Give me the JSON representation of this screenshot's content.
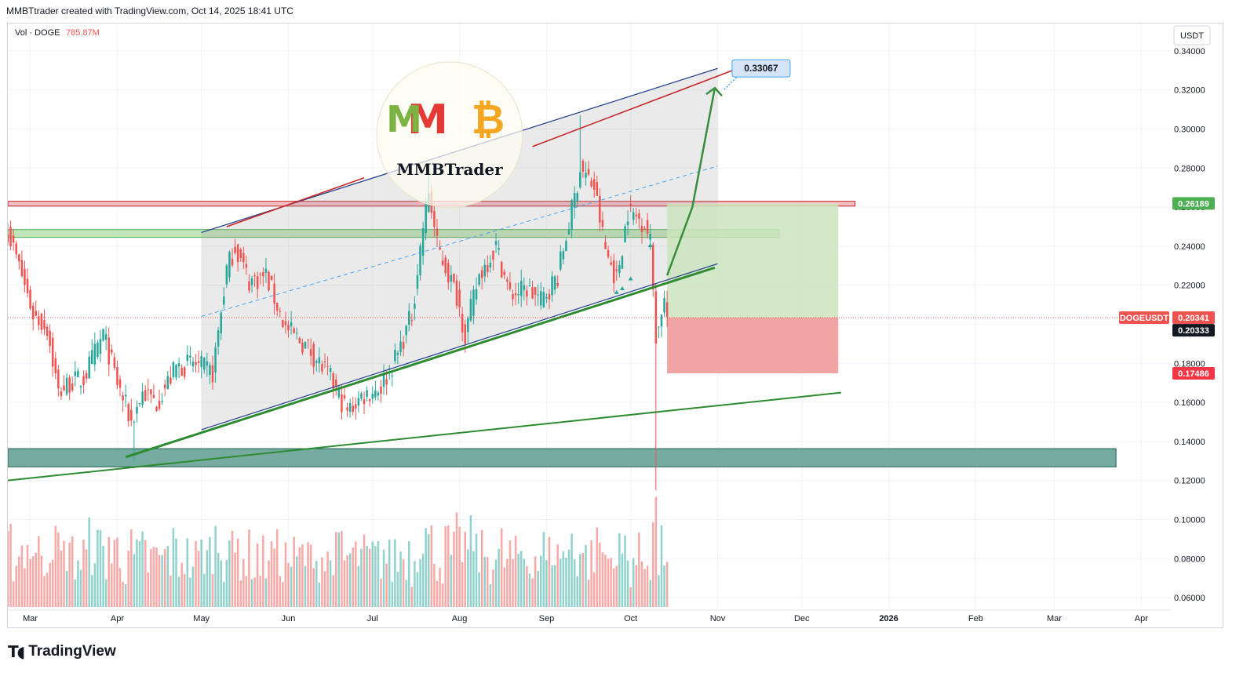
{
  "header": {
    "credit": "MMBTtrader created with TradingView.com, Oct 14, 2025 18:41 UTC"
  },
  "legend": {
    "vol_label": "Vol · DOGE",
    "vol_value": "785.87M"
  },
  "currency_label": "USDT",
  "footer": {
    "brand": "TradingView"
  },
  "watermark": {
    "text": "MMBTrader"
  },
  "colors": {
    "up": "#26a69a",
    "down": "#ef5350",
    "grid": "#f0f3fa",
    "target_box": "#cbe4bd",
    "stop_box": "#ef9a9a"
  },
  "chart_data": {
    "type": "candlestick",
    "symbol": "DOGEUSDT",
    "y_axis": {
      "ticks": [
        "0.06000",
        "0.08000",
        "0.10000",
        "0.12000",
        "0.14000",
        "0.16000",
        "0.18000",
        "0.20000",
        "0.22000",
        "0.24000",
        "0.26000",
        "0.28000",
        "0.30000",
        "0.32000",
        "0.34000"
      ],
      "range": [
        0.052,
        0.356
      ]
    },
    "x_axis": {
      "ticks": [
        {
          "label": "Mar",
          "date": "2025-03-01"
        },
        {
          "label": "Apr",
          "date": "2025-04-01"
        },
        {
          "label": "May",
          "date": "2025-05-01"
        },
        {
          "label": "Jun",
          "date": "2025-06-01"
        },
        {
          "label": "Jul",
          "date": "2025-07-01"
        },
        {
          "label": "Aug",
          "date": "2025-08-01"
        },
        {
          "label": "Sep",
          "date": "2025-09-01"
        },
        {
          "label": "Oct",
          "date": "2025-10-01"
        },
        {
          "label": "Nov",
          "date": "2025-11-01"
        },
        {
          "label": "Dec",
          "date": "2025-12-01"
        },
        {
          "label": "2026",
          "date": "2026-01-01"
        },
        {
          "label": "Feb",
          "date": "2026-02-01"
        },
        {
          "label": "Mar",
          "date": "2026-03-01"
        },
        {
          "label": "Apr",
          "date": "2026-04-01"
        }
      ],
      "range": [
        "2025-02-21",
        "2026-04-30"
      ]
    },
    "price_waypoints": [
      {
        "date": "2025-02-21",
        "close": 0.248
      },
      {
        "date": "2025-02-26",
        "close": 0.225
      },
      {
        "date": "2025-03-02",
        "close": 0.205
      },
      {
        "date": "2025-03-07",
        "close": 0.198
      },
      {
        "date": "2025-03-11",
        "close": 0.165
      },
      {
        "date": "2025-03-15",
        "close": 0.17
      },
      {
        "date": "2025-03-20",
        "close": 0.172
      },
      {
        "date": "2025-03-27",
        "close": 0.195
      },
      {
        "date": "2025-04-01",
        "close": 0.17
      },
      {
        "date": "2025-04-06",
        "close": 0.15
      },
      {
        "date": "2025-04-10",
        "close": 0.165
      },
      {
        "date": "2025-04-15",
        "close": 0.16
      },
      {
        "date": "2025-04-22",
        "close": 0.178
      },
      {
        "date": "2025-04-28",
        "close": 0.18
      },
      {
        "date": "2025-05-05",
        "close": 0.175
      },
      {
        "date": "2025-05-10",
        "close": 0.228
      },
      {
        "date": "2025-05-13",
        "close": 0.24
      },
      {
        "date": "2025-05-18",
        "close": 0.222
      },
      {
        "date": "2025-05-24",
        "close": 0.225
      },
      {
        "date": "2025-05-31",
        "close": 0.198
      },
      {
        "date": "2025-06-08",
        "close": 0.188
      },
      {
        "date": "2025-06-16",
        "close": 0.172
      },
      {
        "date": "2025-06-22",
        "close": 0.155
      },
      {
        "date": "2025-06-27",
        "close": 0.163
      },
      {
        "date": "2025-07-04",
        "close": 0.168
      },
      {
        "date": "2025-07-10",
        "close": 0.185
      },
      {
        "date": "2025-07-15",
        "close": 0.205
      },
      {
        "date": "2025-07-19",
        "close": 0.25
      },
      {
        "date": "2025-07-21",
        "close": 0.268
      },
      {
        "date": "2025-07-24",
        "close": 0.24
      },
      {
        "date": "2025-07-31",
        "close": 0.215
      },
      {
        "date": "2025-08-03",
        "close": 0.195
      },
      {
        "date": "2025-08-08",
        "close": 0.225
      },
      {
        "date": "2025-08-14",
        "close": 0.24
      },
      {
        "date": "2025-08-19",
        "close": 0.215
      },
      {
        "date": "2025-08-25",
        "close": 0.218
      },
      {
        "date": "2025-08-30",
        "close": 0.212
      },
      {
        "date": "2025-09-05",
        "close": 0.225
      },
      {
        "date": "2025-09-11",
        "close": 0.265
      },
      {
        "date": "2025-09-13",
        "close": 0.28
      },
      {
        "date": "2025-09-18",
        "close": 0.27
      },
      {
        "date": "2025-09-22",
        "close": 0.238
      },
      {
        "date": "2025-09-26",
        "close": 0.223
      },
      {
        "date": "2025-09-30",
        "close": 0.258
      },
      {
        "date": "2025-10-03",
        "close": 0.255
      },
      {
        "date": "2025-10-06",
        "close": 0.252
      },
      {
        "date": "2025-10-08",
        "close": 0.242
      },
      {
        "date": "2025-10-10",
        "close": 0.195
      },
      {
        "date": "2025-10-11",
        "close": 0.198
      },
      {
        "date": "2025-10-12",
        "close": 0.208
      },
      {
        "date": "2025-10-13",
        "close": 0.212
      },
      {
        "date": "2025-10-14",
        "close": 0.2034
      }
    ],
    "notable_highs_lows": [
      {
        "date": "2025-07-21",
        "high": 0.282
      },
      {
        "date": "2025-09-13",
        "high": 0.307
      },
      {
        "date": "2025-10-10",
        "low": 0.115
      },
      {
        "date": "2025-04-07",
        "low": 0.13
      }
    ],
    "price_tags": [
      {
        "label": "0.26189",
        "value": 0.26189,
        "color": "#4caf50"
      },
      {
        "label": "0.20341",
        "value": 0.20341,
        "color": "#ef5350",
        "symbol": "DOGEUSDT"
      },
      {
        "label": "0.20333",
        "value": 0.20333,
        "color": "#131722"
      },
      {
        "label": "0.17486",
        "value": 0.17486,
        "color": "#f23645"
      }
    ],
    "target_label": {
      "label": "0.33067",
      "value": 0.33067
    },
    "zones": [
      {
        "name": "resistance",
        "from": "2025-02-21",
        "to": "2025-12-20",
        "low": 0.2605,
        "high": 0.263,
        "color": "#f2b0b8"
      },
      {
        "name": "mid-support",
        "from": "2025-02-21",
        "to": "2025-11-23",
        "low": 0.2445,
        "high": 0.2485,
        "color": "#b5e0ae"
      },
      {
        "name": "demand",
        "from": "2025-02-21",
        "to": "2026-03-23",
        "low": 0.127,
        "high": 0.1363,
        "color": "#5d9c8f"
      }
    ],
    "channel": {
      "from": "2025-05-01",
      "to": "2025-11-01",
      "upper": [
        0.247,
        0.331
      ],
      "middle": [
        0.204,
        0.281
      ],
      "lower": [
        0.146,
        0.231
      ]
    },
    "trendlines": [
      {
        "from": "2025-02-21",
        "to": "2025-12-15",
        "y": [
          0.12,
          0.165
        ],
        "color": "#2e8b30"
      },
      {
        "from": "2025-04-04",
        "to": "2025-10-31",
        "y": [
          0.132,
          0.229
        ],
        "color": "#2e8b30"
      },
      {
        "from": "2025-05-10",
        "to": "2025-06-28",
        "y": [
          0.25,
          0.275
        ],
        "color": "#c62828"
      },
      {
        "from": "2025-08-27",
        "to": "2025-11-10",
        "y": [
          0.291,
          0.332
        ],
        "color": "#c62828"
      }
    ],
    "projection_arrow": {
      "points": [
        [
          "2025-10-14",
          0.225
        ],
        [
          "2025-10-23",
          0.26
        ],
        [
          "2025-10-31",
          0.321
        ]
      ],
      "color": "#388e3c"
    },
    "position_box": {
      "from": "2025-10-14",
      "to": "2025-12-14",
      "entry": 0.20341,
      "target": 0.26189,
      "stop": 0.17486
    }
  }
}
